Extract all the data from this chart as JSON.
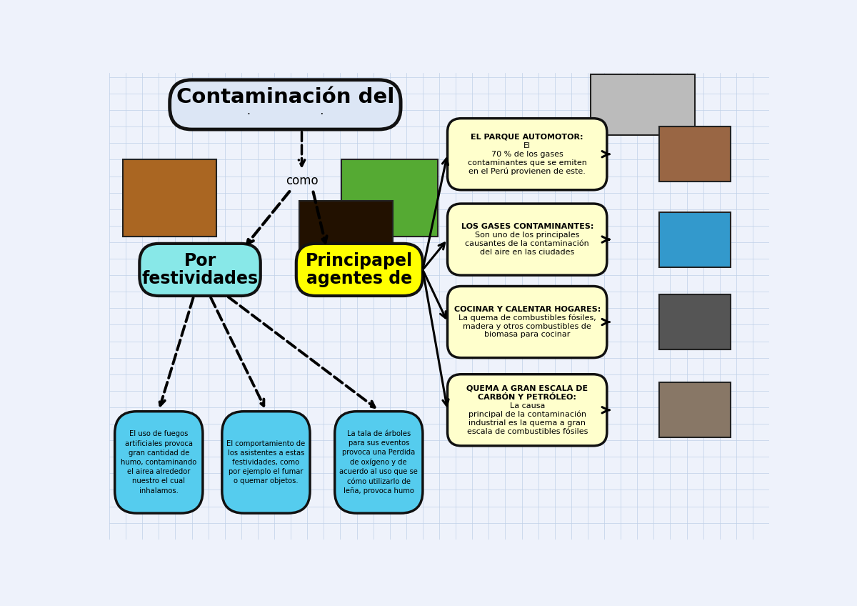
{
  "background_color": "#eef2fb",
  "grid_color": "#c0d0e8",
  "title_bg": "#dce6f5",
  "title_border": "#111111",
  "title_line1": "Contaminación del",
  "title_line2": "·                    ·",
  "central_left_bg": "#88e8e8",
  "central_left_border": "#111111",
  "central_left_line1": "Por",
  "central_left_line2": "festividades",
  "central_right_bg": "#ffff00",
  "central_right_border": "#111111",
  "central_right_line1": "Principapel",
  "central_right_line2": "agentes de",
  "node_bg": "#ffffcc",
  "node_border": "#111111",
  "nodes": [
    {
      "title": "EL PARQUE AUTOMOTOR:",
      "body": "El\n70 % de los gases\ncontaminantes que se emiten\nen el Perú provienen de este.",
      "photo_color": "#996644"
    },
    {
      "title": "LOS GASES CONTAMINANTES:",
      "body": "Son uno de los principales\ncausantes de la contaminación\ndel aire en las ciudades",
      "photo_color": "#3399cc"
    },
    {
      "title": "COCINAR Y CALENTAR HOGARES:",
      "body": "La quema de combustibles fósiles,\nmadera y otros combustibles de\nbiomasa para cocinar",
      "photo_color": "#555555"
    },
    {
      "title": "QUEMA A GRAN ESCALA DE\nCARBÓN Y PETRÓLEO:",
      "body": "La causa\nprincipal de la contaminación\nindustrial es la quema a gran\nescala de combustibles fósiles",
      "photo_color": "#887766"
    }
  ],
  "bottom_node_bg": "#55ccee",
  "bottom_node_border": "#111111",
  "bottom_nodes": [
    "El uso de fuegos\nartificiales provoca\ngran cantidad de\nhumo, contaminando\nel airea alrededor\nnuestro el cual\ninhalamos.",
    "El comportamiento de\nlos asistentes a estas\nfestividades, como\npor ejemplo el fumar\no quemar objetos.",
    "La tala de árboles\npara sus eventos\nprovoca una Perdida\nde oxígeno y de\nacuerdo al uso que se\ncómo utilizarlo de\nleña, provoca humo"
  ],
  "img_fire_color": "#aa6622",
  "img_festival_color": "#55aa33",
  "img_fireworks_color": "#221100",
  "img_smoke_color": "#bbbbbb"
}
